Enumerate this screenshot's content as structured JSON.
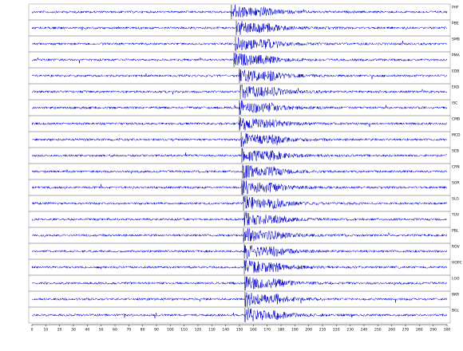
{
  "chart_data": {
    "type": "seismogram",
    "xlim": [
      0,
      300
    ],
    "xticks": [
      0,
      10,
      20,
      30,
      40,
      50,
      60,
      70,
      80,
      90,
      100,
      110,
      120,
      130,
      140,
      150,
      160,
      170,
      180,
      190,
      200,
      210,
      220,
      230,
      240,
      250,
      260,
      270,
      280,
      290,
      300
    ],
    "series": [
      {
        "name": "PHF",
        "color": "#0000cc",
        "arrival": 144.2
      },
      {
        "name": "PBE",
        "color": "#0000cc",
        "arrival": 147.7
      },
      {
        "name": "SMB",
        "color": "#0000cc",
        "arrival": 147.1
      },
      {
        "name": "PMA",
        "color": "#0000cc",
        "arrival": 146.0
      },
      {
        "name": "EDB",
        "color": "#0000cc",
        "arrival": 150.0
      },
      {
        "name": "EKD",
        "color": "#0000cc",
        "arrival": 150.6
      },
      {
        "name": "ISC",
        "color": "#0000cc",
        "arrival": 150.0
      },
      {
        "name": "CMB",
        "color": "#0000cc",
        "arrival": 150.0
      },
      {
        "name": "MCD",
        "color": "#0000cc",
        "arrival": 151.2
      },
      {
        "name": "SEB",
        "color": "#0000cc",
        "arrival": 151.7
      },
      {
        "name": "CRN",
        "color": "#0000cc",
        "arrival": 152.3
      },
      {
        "name": "SOR",
        "color": "#0000cc",
        "arrival": 151.7
      },
      {
        "name": "SLG",
        "color": "#0000cc",
        "arrival": 152.9
      },
      {
        "name": "TUV",
        "color": "#0000cc",
        "arrival": 153.5
      },
      {
        "name": "PBL",
        "color": "#0000cc",
        "arrival": 152.9
      },
      {
        "name": "ROV",
        "color": "#0000cc",
        "arrival": 153.5
      },
      {
        "name": "HOPC",
        "color": "#0000cc",
        "arrival": 153.5
      },
      {
        "name": "LGO",
        "color": "#0000cc",
        "arrival": 154.0
      },
      {
        "name": "BKR",
        "color": "#0000cc",
        "arrival": 154.0
      },
      {
        "name": "BGL",
        "color": "#0000cc",
        "arrival": 154.0
      }
    ]
  }
}
